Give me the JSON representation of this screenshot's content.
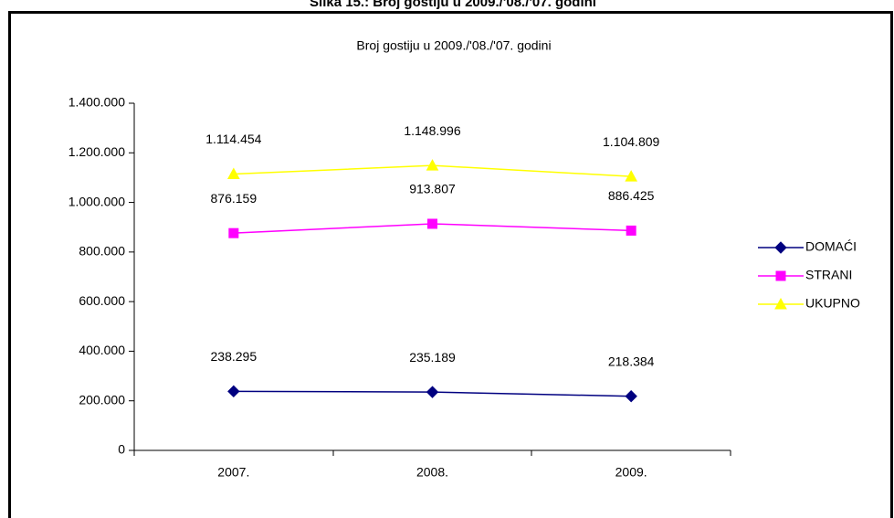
{
  "caption": "Slika 15.:  Broj gostiju u 2009./'08./'07. godini",
  "chart_data": {
    "type": "line",
    "title": "Broj gostiju u 2009./'08./'07. godini",
    "categories": [
      "2007.",
      "2008.",
      "2009."
    ],
    "series": [
      {
        "name": "DOMAĆI",
        "color": "#000080",
        "marker": "diamond",
        "values": [
          238295,
          235189,
          218384
        ],
        "value_labels": [
          "238.295",
          "235.189",
          "218.384"
        ]
      },
      {
        "name": "STRANI",
        "color": "#ff00ff",
        "marker": "square",
        "values": [
          876159,
          913807,
          886425
        ],
        "value_labels": [
          "876.159",
          "913.807",
          "886.425"
        ]
      },
      {
        "name": "UKUPNO",
        "color": "#ffff00",
        "marker": "triangle",
        "values": [
          1114454,
          1148996,
          1104809
        ],
        "value_labels": [
          "1.114.454",
          "1.148.996",
          "1.104.809"
        ]
      }
    ],
    "ylim": [
      0,
      1400000
    ],
    "yticks": [
      0,
      {
        "value": 200000,
        "label": "200.000"
      },
      {
        "value": 400000,
        "label": "400.000"
      },
      {
        "value": 600000,
        "label": "600.000"
      },
      {
        "value": 800000,
        "label": "800.000"
      },
      {
        "value": 1000000,
        "label": "1.000.000"
      },
      {
        "value": 1200000,
        "label": "1.200.000"
      },
      {
        "value": 1400000,
        "label": "1.400.000"
      }
    ],
    "legend": "right"
  }
}
